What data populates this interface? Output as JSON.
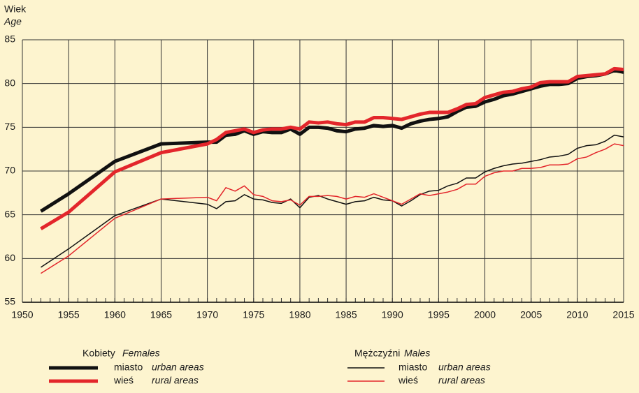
{
  "chart_data": {
    "type": "line",
    "y_label": "Wiek",
    "y_label_en": "Age",
    "x": [
      1952,
      1955,
      1960,
      1965,
      1970,
      1971,
      1972,
      1973,
      1974,
      1975,
      1976,
      1977,
      1978,
      1979,
      1980,
      1981,
      1982,
      1983,
      1984,
      1985,
      1986,
      1987,
      1988,
      1989,
      1990,
      1991,
      1992,
      1993,
      1994,
      1995,
      1996,
      1997,
      1998,
      1999,
      2000,
      2001,
      2002,
      2003,
      2004,
      2005,
      2006,
      2007,
      2008,
      2009,
      2010,
      2011,
      2012,
      2013,
      2014,
      2015
    ],
    "groups": [
      {
        "name": "Kobiety",
        "name_en": "Females",
        "series": [
          {
            "name": "miasto",
            "name_en": "urban areas",
            "color": "#111111",
            "width": 5,
            "values": [
              65.4,
              67.4,
              71.1,
              73.1,
              73.3,
              73.3,
              74.1,
              74.2,
              74.6,
              74.2,
              74.5,
              74.4,
              74.4,
              74.8,
              74.2,
              75.0,
              75.0,
              74.9,
              74.6,
              74.5,
              74.8,
              74.9,
              75.2,
              75.1,
              75.2,
              74.9,
              75.4,
              75.7,
              75.9,
              76.0,
              76.2,
              76.8,
              77.3,
              77.4,
              77.9,
              78.2,
              78.6,
              78.8,
              79.1,
              79.4,
              79.7,
              79.9,
              79.9,
              80.0,
              80.6,
              80.8,
              80.9,
              81.1,
              81.5,
              81.3
            ]
          },
          {
            "name": "wieś",
            "name_en": "rural areas",
            "color": "#e3262b",
            "width": 5,
            "values": [
              63.4,
              65.3,
              69.9,
              72.1,
              73.1,
              73.6,
              74.4,
              74.6,
              74.8,
              74.4,
              74.7,
              74.8,
              74.8,
              75.0,
              74.8,
              75.6,
              75.5,
              75.6,
              75.4,
              75.3,
              75.6,
              75.6,
              76.1,
              76.1,
              76.0,
              75.9,
              76.2,
              76.5,
              76.7,
              76.7,
              76.7,
              77.1,
              77.6,
              77.7,
              78.4,
              78.7,
              79.0,
              79.1,
              79.4,
              79.6,
              80.1,
              80.2,
              80.2,
              80.2,
              80.8,
              80.9,
              81.0,
              81.1,
              81.7,
              81.6
            ]
          }
        ]
      },
      {
        "name": "Mężczyźni",
        "name_en": "Males",
        "series": [
          {
            "name": "miasto",
            "name_en": "urban areas",
            "color": "#111111",
            "width": 1.5,
            "values": [
              59.0,
              61.1,
              64.9,
              66.8,
              66.2,
              65.7,
              66.5,
              66.6,
              67.3,
              66.8,
              66.7,
              66.4,
              66.3,
              66.8,
              65.8,
              67.0,
              67.2,
              66.8,
              66.5,
              66.2,
              66.5,
              66.6,
              67.0,
              66.7,
              66.6,
              66.0,
              66.6,
              67.3,
              67.7,
              67.8,
              68.3,
              68.6,
              69.2,
              69.2,
              69.9,
              70.3,
              70.6,
              70.8,
              70.9,
              71.1,
              71.3,
              71.6,
              71.7,
              71.9,
              72.6,
              72.9,
              73.0,
              73.4,
              74.1,
              73.9
            ]
          },
          {
            "name": "wieś",
            "name_en": "rural areas",
            "color": "#e3262b",
            "width": 1.5,
            "values": [
              58.3,
              60.3,
              64.6,
              66.8,
              67.0,
              66.6,
              68.1,
              67.7,
              68.3,
              67.3,
              67.1,
              66.6,
              66.5,
              66.7,
              66.1,
              67.1,
              67.1,
              67.2,
              67.1,
              66.8,
              67.1,
              67.0,
              67.4,
              67.0,
              66.6,
              66.2,
              66.8,
              67.4,
              67.2,
              67.4,
              67.6,
              67.9,
              68.5,
              68.5,
              69.4,
              69.8,
              70.0,
              70.0,
              70.3,
              70.3,
              70.4,
              70.7,
              70.7,
              70.8,
              71.4,
              71.6,
              72.1,
              72.5,
              73.1,
              72.9
            ]
          }
        ]
      }
    ],
    "xlim": [
      1950,
      2015
    ],
    "xticks": [
      1950,
      1955,
      1960,
      1965,
      1970,
      1975,
      1980,
      1985,
      1990,
      1995,
      2000,
      2005,
      2010,
      2015
    ],
    "x_minor_step": 1,
    "ylim": [
      55,
      85
    ],
    "yticks": [
      55,
      60,
      65,
      70,
      75,
      80,
      85
    ],
    "grid": true
  }
}
